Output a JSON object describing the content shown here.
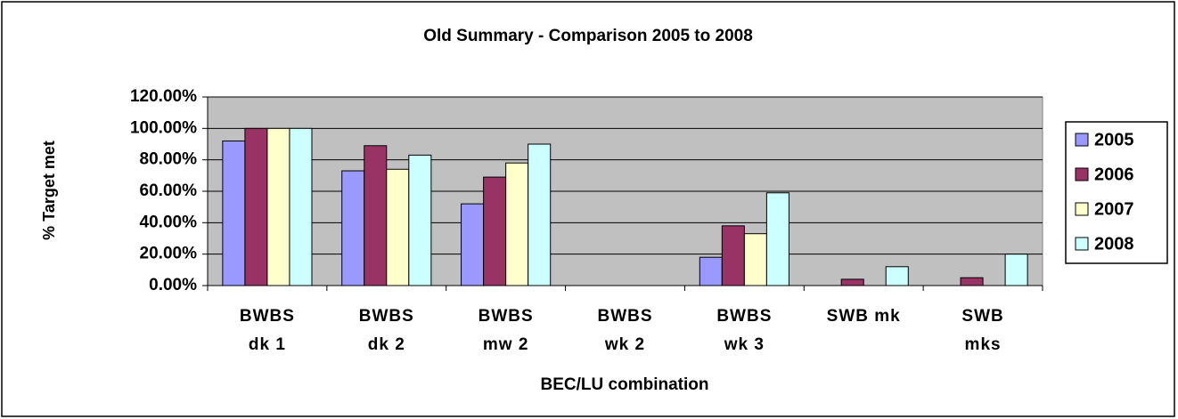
{
  "chart_data": {
    "type": "bar",
    "title": "Old Summary - Comparison 2005 to 2008",
    "y_label": "% Target met",
    "x_label": "BEC/LU combination",
    "categories": [
      "BWBS dk 1",
      "BWBS dk 2",
      "BWBS mw 2",
      "BWBS wk 2",
      "BWBS wk 3",
      "SWB mk",
      "SWB mks"
    ],
    "series": [
      {
        "name": "2005",
        "color": "#9999ff",
        "values": [
          92,
          73,
          52,
          0,
          18,
          0,
          0
        ]
      },
      {
        "name": "2006",
        "color": "#993366",
        "values": [
          100,
          89,
          69,
          0,
          38,
          4,
          5
        ]
      },
      {
        "name": "2007",
        "color": "#ffffcc",
        "values": [
          100,
          74,
          78,
          0,
          33,
          0,
          0
        ]
      },
      {
        "name": "2008",
        "color": "#ccffff",
        "values": [
          100,
          83,
          90,
          0,
          59,
          12,
          20
        ]
      }
    ],
    "ylim": [
      0,
      120
    ],
    "yticks": [
      {
        "value": 0,
        "label": "0.00%"
      },
      {
        "value": 20,
        "label": "20.00%"
      },
      {
        "value": 40,
        "label": "40.00%"
      },
      {
        "value": 60,
        "label": "60.00%"
      },
      {
        "value": 80,
        "label": "80.00%"
      },
      {
        "value": 100,
        "label": "100.00%"
      },
      {
        "value": 120,
        "label": "120.00%"
      }
    ],
    "grid": true,
    "legend": "right",
    "plot_background": "#c0c0c0"
  }
}
